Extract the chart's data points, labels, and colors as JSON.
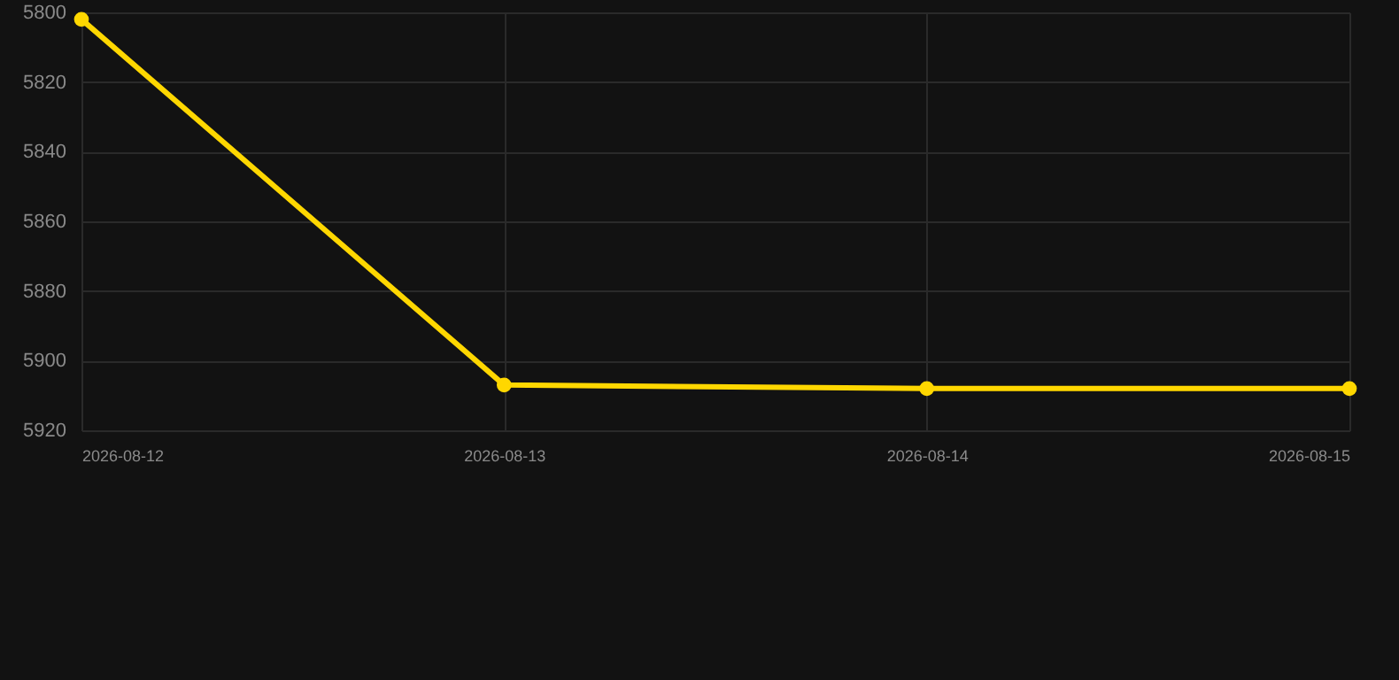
{
  "chart_data": {
    "type": "line",
    "x": [
      "2026-08-12",
      "2026-08-13",
      "2026-08-14",
      "2026-08-15"
    ],
    "series": [
      {
        "color": "#ffd700",
        "values": [
          5802,
          5907,
          5908,
          5908
        ]
      }
    ],
    "xlim": [
      "2026-08-12",
      "2026-08-15"
    ],
    "xticks": [
      "2026-08-12",
      "2026-08-13",
      "2026-08-14",
      "2026-08-15"
    ],
    "ylim": [
      5920,
      5800
    ],
    "yticks": [
      5800,
      5820,
      5840,
      5860,
      5880,
      5900,
      5920
    ],
    "grid": true,
    "marker": "circle",
    "line_style": "solid"
  }
}
